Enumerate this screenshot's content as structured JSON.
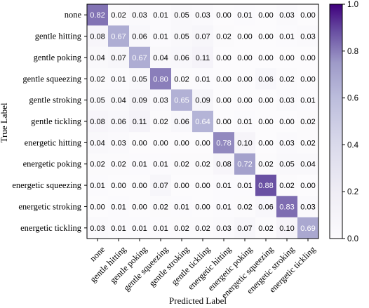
{
  "chart_data": {
    "type": "heatmap",
    "title": "",
    "xlabel": "Predicted Label",
    "ylabel": "True Label",
    "labels": [
      "none",
      "gentle hitting",
      "gentle poking",
      "gentle squeezing",
      "gentle stroking",
      "gentle tickling",
      "energetic hitting",
      "energetic poking",
      "energetic squeezing",
      "energetic stroking",
      "energetic tickling"
    ],
    "matrix": [
      [
        "0.82",
        "0.02",
        "0.03",
        "0.01",
        "0.05",
        "0.03",
        "0.00",
        "0.01",
        "0.00",
        "0.03",
        "0.00"
      ],
      [
        "0.08",
        "0.67",
        "0.06",
        "0.01",
        "0.05",
        "0.07",
        "0.02",
        "0.00",
        "0.00",
        "0.01",
        "0.03"
      ],
      [
        "0.04",
        "0.07",
        "0.67",
        "0.04",
        "0.06",
        "0.11",
        "0.00",
        "0.00",
        "0.00",
        "0.00",
        "0.00"
      ],
      [
        "0.02",
        "0.01",
        "0.05",
        "0.80",
        "0.02",
        "0.01",
        "0.00",
        "0.00",
        "0.06",
        "0.02",
        "0.00"
      ],
      [
        "0.05",
        "0.04",
        "0.09",
        "0.03",
        "0.65",
        "0.09",
        "0.00",
        "0.00",
        "0.00",
        "0.03",
        "0.01"
      ],
      [
        "0.08",
        "0.06",
        "0.11",
        "0.02",
        "0.06",
        "0.64",
        "0.00",
        "0.01",
        "0.00",
        "0.00",
        "0.02"
      ],
      [
        "0.04",
        "0.03",
        "0.00",
        "0.00",
        "0.00",
        "0.00",
        "0.78",
        "0.10",
        "0.00",
        "0.03",
        "0.02"
      ],
      [
        "0.02",
        "0.02",
        "0.01",
        "0.01",
        "0.02",
        "0.02",
        "0.08",
        "0.72",
        "0.02",
        "0.05",
        "0.04"
      ],
      [
        "0.01",
        "0.00",
        "0.00",
        "0.07",
        "0.00",
        "0.00",
        "0.01",
        "0.01",
        "0.88",
        "0.02",
        "0.00"
      ],
      [
        "0.00",
        "0.01",
        "0.00",
        "0.02",
        "0.01",
        "0.00",
        "0.01",
        "0.02",
        "0.06",
        "0.83",
        "0.03"
      ],
      [
        "0.03",
        "0.01",
        "0.01",
        "0.01",
        "0.02",
        "0.02",
        "0.03",
        "0.07",
        "0.02",
        "0.10",
        "0.69"
      ]
    ],
    "colorbar": {
      "min": 0.0,
      "max": 1.0,
      "ticks": [
        "0.0",
        "0.2",
        "0.4",
        "0.6",
        "0.8",
        "1.0"
      ]
    },
    "colors": {
      "low": "#fcfbfd",
      "mid": "#9e9ac8",
      "high": "#3f007d"
    }
  }
}
